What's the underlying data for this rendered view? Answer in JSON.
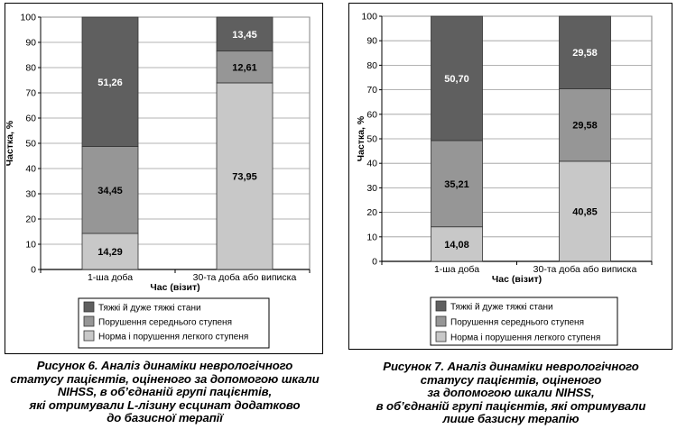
{
  "figures": [
    {
      "caption_lines": [
        "Рисунок 6. Аналіз динаміки неврологічного",
        "статусу пацієнтів, оціненого за допомогою шкали",
        "NIHSS, в об’єднаній групі пацієнтів,",
        "які отримували L-лізину есцинат додатково",
        "до базисної терапії"
      ]
    },
    {
      "caption_lines": [
        "Рисунок 7. Аналіз динаміки неврологічного",
        "статусу пацієнтів, оціненого",
        "за допомогою шкали NIHSS,",
        "в об’єднаній групі пацієнтів, які отримували",
        "лише базисну терапію"
      ]
    }
  ],
  "chart_data": [
    {
      "type": "bar",
      "stacked": true,
      "title": "",
      "xlabel": "Час (візит)",
      "ylabel": "Частка, %",
      "ylim": [
        0,
        100
      ],
      "yticks": [
        "0",
        "10",
        "20",
        "30",
        "40",
        "50",
        "60",
        "70",
        "80",
        "90",
        "100"
      ],
      "grid": true,
      "legend_position": "bottom",
      "categories": [
        "1-ша доба",
        "30-та доба або виписка"
      ],
      "series": [
        {
          "name": "Норма і порушення легкого ступеня",
          "color": "#c8c8c8",
          "label_color": "#000000",
          "values": [
            14.29,
            73.95
          ],
          "labels": [
            "14,29",
            "73,95"
          ]
        },
        {
          "name": "Порушення середнього ступеня",
          "color": "#969696",
          "label_color": "#000000",
          "values": [
            34.45,
            12.61
          ],
          "labels": [
            "34,45",
            "12,61"
          ]
        },
        {
          "name": "Тяжкі й дуже тяжкі стани",
          "color": "#5f5f5f",
          "label_color": "#ffffff",
          "values": [
            51.26,
            13.45
          ],
          "labels": [
            "51,26",
            "13,45"
          ]
        }
      ],
      "legend_order": [
        2,
        1,
        0
      ]
    },
    {
      "type": "bar",
      "stacked": true,
      "title": "",
      "xlabel": "Час (візит)",
      "ylabel": "Частка, %",
      "ylim": [
        0,
        100
      ],
      "yticks": [
        "0",
        "10",
        "20",
        "30",
        "40",
        "50",
        "60",
        "70",
        "80",
        "90",
        "100"
      ],
      "grid": true,
      "legend_position": "bottom",
      "categories": [
        "1-ша доба",
        "30-та доба або виписка"
      ],
      "series": [
        {
          "name": "Норма і порушення легкого ступеня",
          "color": "#c8c8c8",
          "label_color": "#000000",
          "values": [
            14.08,
            40.85
          ],
          "labels": [
            "14,08",
            "40,85"
          ]
        },
        {
          "name": "Порушення середнього ступеня",
          "color": "#969696",
          "label_color": "#000000",
          "values": [
            35.21,
            29.58
          ],
          "labels": [
            "35,21",
            "29,58"
          ]
        },
        {
          "name": "Тяжкі й дуже тяжкі стани",
          "color": "#5f5f5f",
          "label_color": "#ffffff",
          "values": [
            50.7,
            29.58
          ],
          "labels": [
            "50,70",
            "29,58"
          ]
        }
      ],
      "legend_order": [
        2,
        1,
        0
      ]
    }
  ]
}
